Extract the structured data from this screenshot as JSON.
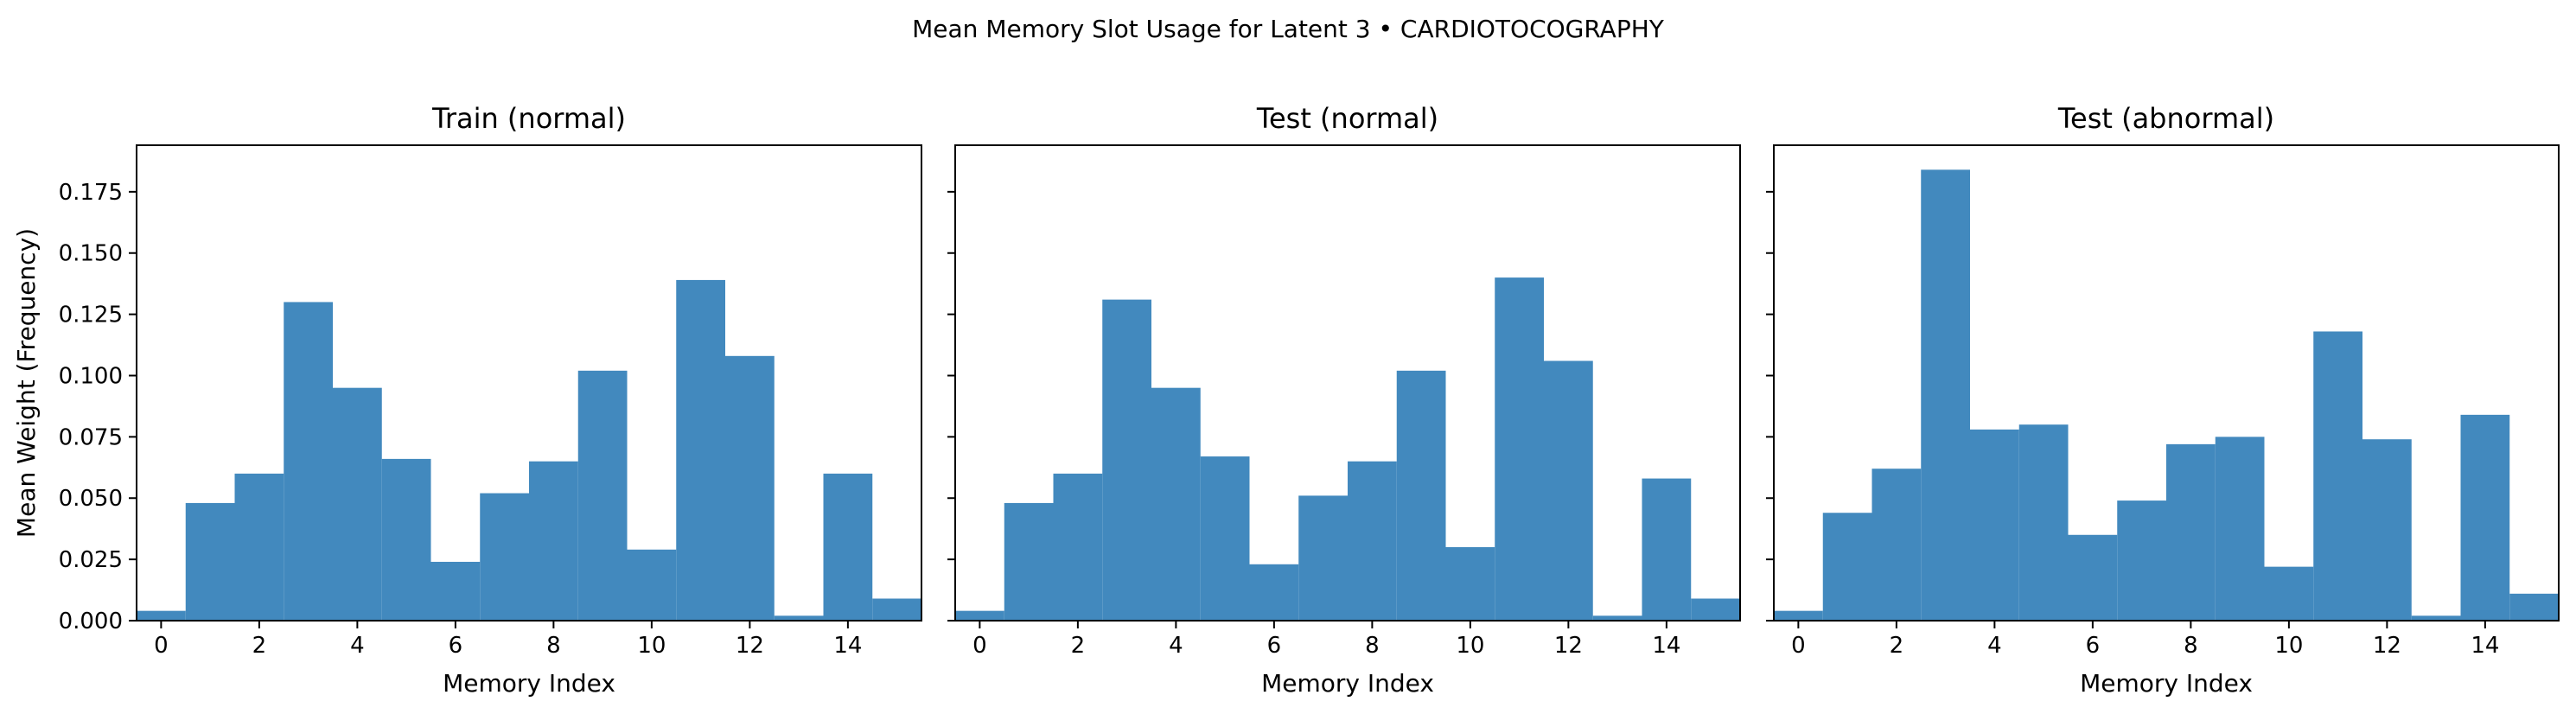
{
  "figure": {
    "suptitle": "Mean Memory Slot Usage for Latent 3 • CARDIOTOCOGRAPHY"
  },
  "colors": {
    "bar": "#4289BE",
    "axis": "#000000"
  },
  "chart_data": [
    {
      "type": "bar",
      "title": "Train (normal)",
      "xlabel": "Memory Index",
      "ylabel": "Mean Weight (Frequency)",
      "x": [
        0,
        1,
        2,
        3,
        4,
        5,
        6,
        7,
        8,
        9,
        10,
        11,
        12,
        13,
        14,
        15
      ],
      "values": [
        0.004,
        0.048,
        0.06,
        0.13,
        0.095,
        0.066,
        0.024,
        0.052,
        0.065,
        0.102,
        0.029,
        0.139,
        0.108,
        0.002,
        0.06,
        0.009
      ],
      "xlim": [
        -0.5,
        15.5
      ],
      "ylim": [
        0,
        0.194
      ],
      "xticks": [
        0,
        2,
        4,
        6,
        8,
        10,
        12,
        14
      ],
      "yticks": [
        "0.000",
        "0.025",
        "0.050",
        "0.075",
        "0.100",
        "0.125",
        "0.150",
        "0.175"
      ],
      "grid": false
    },
    {
      "type": "bar",
      "title": "Test (normal)",
      "xlabel": "Memory Index",
      "ylabel": "",
      "x": [
        0,
        1,
        2,
        3,
        4,
        5,
        6,
        7,
        8,
        9,
        10,
        11,
        12,
        13,
        14,
        15
      ],
      "values": [
        0.004,
        0.048,
        0.06,
        0.131,
        0.095,
        0.067,
        0.023,
        0.051,
        0.065,
        0.102,
        0.03,
        0.14,
        0.106,
        0.002,
        0.058,
        0.009
      ],
      "xlim": [
        -0.5,
        15.5
      ],
      "ylim": [
        0,
        0.194
      ],
      "xticks": [
        0,
        2,
        4,
        6,
        8,
        10,
        12,
        14
      ],
      "yticks": [],
      "grid": false
    },
    {
      "type": "bar",
      "title": "Test (abnormal)",
      "xlabel": "Memory Index",
      "ylabel": "",
      "x": [
        0,
        1,
        2,
        3,
        4,
        5,
        6,
        7,
        8,
        9,
        10,
        11,
        12,
        13,
        14,
        15
      ],
      "values": [
        0.004,
        0.044,
        0.062,
        0.184,
        0.078,
        0.08,
        0.035,
        0.049,
        0.072,
        0.075,
        0.022,
        0.118,
        0.074,
        0.002,
        0.084,
        0.011
      ],
      "xlim": [
        -0.5,
        15.5
      ],
      "ylim": [
        0,
        0.194
      ],
      "xticks": [
        0,
        2,
        4,
        6,
        8,
        10,
        12,
        14
      ],
      "yticks": [],
      "grid": false
    }
  ]
}
